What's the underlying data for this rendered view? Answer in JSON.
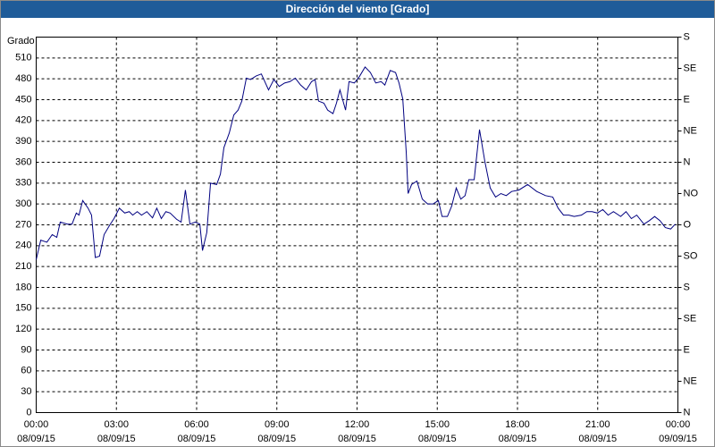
{
  "chart_data": {
    "type": "line",
    "title": "Dirección del viento [Grado]",
    "y_label": "Grado",
    "x": [
      0,
      0.17,
      0.4,
      0.6,
      0.77,
      0.9,
      1.17,
      1.34,
      1.5,
      1.6,
      1.74,
      1.94,
      2.07,
      2.21,
      2.37,
      2.54,
      2.74,
      2.91,
      3.11,
      3.31,
      3.48,
      3.61,
      3.78,
      3.94,
      4.14,
      4.35,
      4.51,
      4.68,
      4.85,
      5.01,
      5.25,
      5.42,
      5.58,
      5.75,
      5.95,
      6.12,
      6.22,
      6.38,
      6.52,
      6.75,
      6.89,
      7.02,
      7.22,
      7.39,
      7.55,
      7.69,
      7.86,
      8.02,
      8.22,
      8.42,
      8.69,
      8.89,
      9.09,
      9.29,
      9.49,
      9.69,
      9.89,
      10.1,
      10.3,
      10.43,
      10.56,
      10.76,
      10.9,
      11.1,
      11.23,
      11.36,
      11.57,
      11.7,
      11.9,
      12.1,
      12.3,
      12.5,
      12.7,
      12.9,
      13.04,
      13.24,
      13.44,
      13.57,
      13.71,
      13.84,
      13.91,
      14.04,
      14.24,
      14.44,
      14.64,
      14.84,
      15.04,
      15.18,
      15.38,
      15.54,
      15.71,
      15.88,
      16.04,
      16.18,
      16.38,
      16.58,
      16.78,
      16.98,
      17.18,
      17.38,
      17.58,
      17.78,
      18.05,
      18.38,
      18.72,
      19.05,
      19.32,
      19.52,
      19.72,
      19.92,
      20.12,
      20.39,
      20.59,
      20.79,
      20.99,
      21.19,
      21.39,
      21.59,
      21.86,
      22.06,
      22.26,
      22.46,
      22.73,
      22.93,
      23.13,
      23.33,
      23.53,
      23.73,
      23.9
    ],
    "series": [
      {
        "color": "#000080",
        "values": [
          220,
          248,
          245,
          256,
          252,
          274,
          271,
          271,
          287,
          284,
          305,
          294,
          284,
          223,
          225,
          256,
          269,
          279,
          294,
          287,
          289,
          284,
          289,
          284,
          289,
          280,
          294,
          279,
          289,
          287,
          278,
          274,
          320,
          271,
          274,
          271,
          233,
          259,
          330,
          328,
          343,
          381,
          402,
          428,
          435,
          448,
          481,
          479,
          484,
          487,
          464,
          479,
          469,
          474,
          476,
          481,
          471,
          464,
          476,
          479,
          448,
          445,
          435,
          430,
          445,
          464,
          435,
          476,
          474,
          484,
          497,
          489,
          474,
          476,
          471,
          492,
          489,
          474,
          451,
          374,
          315,
          328,
          333,
          307,
          300,
          300,
          305,
          282,
          282,
          297,
          323,
          307,
          312,
          335,
          335,
          407,
          361,
          323,
          310,
          315,
          312,
          318,
          320,
          328,
          318,
          312,
          310,
          294,
          284,
          284,
          282,
          284,
          289,
          289,
          287,
          292,
          284,
          289,
          282,
          289,
          279,
          284,
          271,
          276,
          282,
          276,
          266,
          264,
          271
        ]
      }
    ],
    "xlim": [
      0,
      24
    ],
    "xticks": [
      {
        "value": 0,
        "label": [
          "00:00",
          "08/09/15"
        ]
      },
      {
        "value": 3,
        "label": [
          "03:00",
          "08/09/15"
        ]
      },
      {
        "value": 6,
        "label": [
          "06:00",
          "08/09/15"
        ]
      },
      {
        "value": 9,
        "label": [
          "09:00",
          "08/09/15"
        ]
      },
      {
        "value": 12,
        "label": [
          "12:00",
          "08/09/15"
        ]
      },
      {
        "value": 15,
        "label": [
          "15:00",
          "08/09/15"
        ]
      },
      {
        "value": 18,
        "label": [
          "18:00",
          "08/09/15"
        ]
      },
      {
        "value": 21,
        "label": [
          "21:00",
          "08/09/15"
        ]
      },
      {
        "value": 24,
        "label": [
          "00:00",
          "09/09/15"
        ]
      }
    ],
    "ylim": [
      0,
      540
    ],
    "yticks": [
      0,
      30,
      60,
      90,
      120,
      150,
      180,
      210,
      240,
      270,
      300,
      330,
      360,
      390,
      420,
      450,
      480,
      510
    ],
    "y2lim": [
      0,
      540
    ],
    "y2ticks": [
      {
        "value": 0,
        "label": "N"
      },
      {
        "value": 45,
        "label": "NE"
      },
      {
        "value": 90,
        "label": "E"
      },
      {
        "value": 135,
        "label": "SE"
      },
      {
        "value": 180,
        "label": "S"
      },
      {
        "value": 225,
        "label": "SO"
      },
      {
        "value": 270,
        "label": "O"
      },
      {
        "value": 315,
        "label": "NO"
      },
      {
        "value": 360,
        "label": "N"
      },
      {
        "value": 405,
        "label": "NE"
      },
      {
        "value": 450,
        "label": "E"
      },
      {
        "value": 495,
        "label": "SE"
      },
      {
        "value": 540,
        "label": "S"
      }
    ],
    "grid": true
  }
}
